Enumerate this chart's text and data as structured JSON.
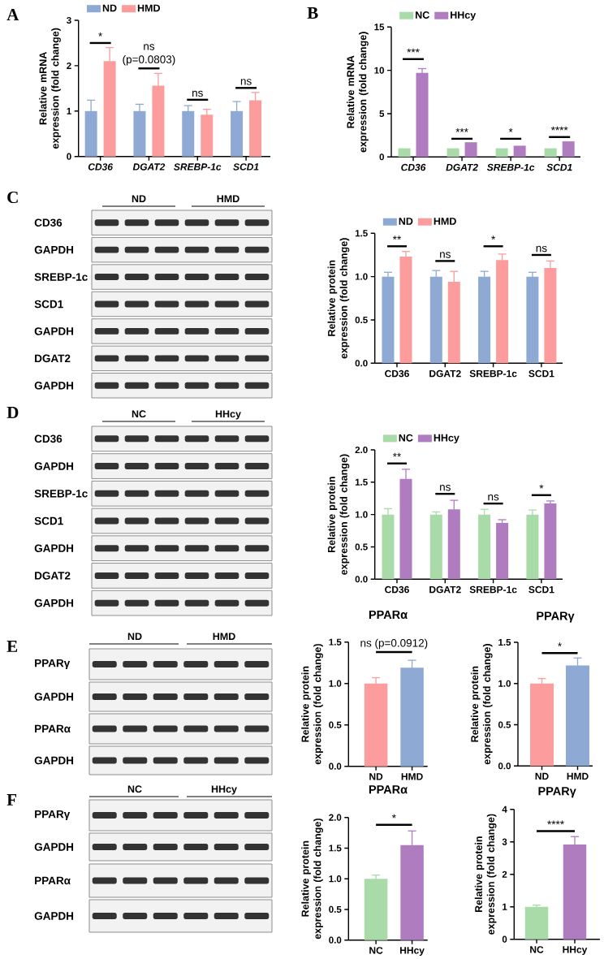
{
  "chart_data": [
    {
      "type": "bar",
      "ylabel": "Relative mRNA expression (fold change)",
      "categories": [
        "CD36",
        "DGAT2",
        "SREBP-1c",
        "SCD1"
      ],
      "series": [
        {
          "name": "ND",
          "color": "#8ea9d3",
          "values": [
            1,
            1,
            1,
            1
          ],
          "errors": [
            0.24,
            0.15,
            0.12,
            0.21
          ]
        },
        {
          "name": "HMD",
          "color": "#fd9c9c",
          "values": [
            2.1,
            1.56,
            0.92,
            1.24
          ],
          "errors": [
            0.3,
            0.27,
            0.12,
            0.17
          ]
        }
      ],
      "ylim": [
        0,
        3
      ],
      "yticks": [
        0,
        1,
        2,
        3
      ],
      "legend": "top",
      "annotations": [
        "A",
        "*",
        "ns (p=0.0803)",
        "ns",
        "ns"
      ]
    },
    {
      "type": "bar",
      "ylabel": "Relative mRNA expression (fold change)",
      "categories": [
        "CD36",
        "DGAT2",
        "SREBP-1c",
        "SCD1"
      ],
      "series": [
        {
          "name": "NC",
          "color": "#a8dba8",
          "values": [
            1,
            1,
            1,
            1
          ]
        },
        {
          "name": "HHcy",
          "color": "#b07cc0",
          "values": [
            9.7,
            1.7,
            1.3,
            1.8
          ],
          "errors": [
            0.5,
            null,
            null,
            null
          ]
        }
      ],
      "ylim": [
        0,
        15
      ],
      "yticks": [
        0,
        5,
        10,
        15
      ],
      "legend": "top",
      "annotations": [
        "B",
        "***",
        "***",
        "*",
        "****"
      ]
    },
    {
      "type": "other",
      "annotations": [
        "C",
        "ND",
        "HMD",
        "CD36",
        "GAPDH",
        "SREBP-1c",
        "SCD1",
        "GAPDH",
        "DGAT2",
        "GAPDH"
      ]
    },
    {
      "type": "bar",
      "ylabel": "Relative protein expression (fold change)",
      "categories": [
        "CD36",
        "DGAT2",
        "SREBP-1c",
        "SCD1"
      ],
      "series": [
        {
          "name": "ND",
          "color": "#8ea9d3",
          "values": [
            1,
            1,
            1,
            1
          ],
          "errors": [
            0.05,
            0.07,
            0.06,
            0.05
          ]
        },
        {
          "name": "HMD",
          "color": "#fd9c9c",
          "values": [
            1.23,
            0.94,
            1.19,
            1.1
          ],
          "errors": [
            0.06,
            0.12,
            0.07,
            0.08
          ]
        }
      ],
      "ylim": [
        0,
        1.5
      ],
      "yticks": [
        {
          "value": 0,
          "label": "0.0"
        },
        0.5,
        {
          "value": 1,
          "label": "1.0"
        },
        1.5
      ],
      "legend": "top",
      "annotations": [
        "**",
        "ns",
        "*",
        "ns"
      ]
    },
    {
      "type": "other",
      "annotations": [
        "D",
        "NC",
        "HHcy",
        "CD36",
        "GAPDH",
        "SREBP-1c",
        "SCD1",
        "GAPDH",
        "DGAT2",
        "GAPDH"
      ]
    },
    {
      "type": "bar",
      "ylabel": "Relative protein expression (fold change)",
      "categories": [
        "CD36",
        "DGAT2",
        "SREBP-1c",
        "SCD1"
      ],
      "series": [
        {
          "name": "NC",
          "color": "#a8dba8",
          "values": [
            1,
            1,
            1,
            1
          ],
          "errors": [
            0.09,
            0.04,
            0.08,
            0.07
          ]
        },
        {
          "name": "HHcy",
          "color": "#b07cc0",
          "values": [
            1.55,
            1.08,
            0.87,
            1.17
          ],
          "errors": [
            0.15,
            0.14,
            0.05,
            0.04
          ]
        }
      ],
      "ylim": [
        0,
        2
      ],
      "yticks": [
        {
          "value": 0,
          "label": "0.0"
        },
        0.5,
        {
          "value": 1,
          "label": "1.0"
        },
        1.5,
        {
          "value": 2,
          "label": "2.0"
        }
      ],
      "legend": "top",
      "annotations": [
        "**",
        "ns",
        "ns",
        "*"
      ]
    },
    {
      "type": "other",
      "annotations": [
        "E",
        "ND",
        "HMD",
        "PPARγ",
        "GAPDH",
        "PPARα",
        "GAPDH"
      ]
    },
    {
      "type": "bar",
      "title": "PPARα",
      "ylabel": "Relative protein expression (fold change)",
      "categories": [
        "ND",
        "HMD"
      ],
      "values": [
        1,
        1.19
      ],
      "errors": [
        0.07,
        0.09
      ],
      "colors": [
        "#fd9c9c",
        "#8ea9d3"
      ],
      "ylim": [
        0,
        1.5
      ],
      "yticks": [
        {
          "value": 0,
          "label": "0.0"
        },
        0.5,
        {
          "value": 1,
          "label": "1.0"
        },
        1.5
      ],
      "annotations": [
        "ns (p=0.0912)"
      ]
    },
    {
      "type": "bar",
      "title": "PPARγ",
      "ylabel": "Relative protein expression (fold change)",
      "categories": [
        "ND",
        "HMD"
      ],
      "values": [
        1,
        1.22
      ],
      "errors": [
        0.06,
        0.09
      ],
      "colors": [
        "#fd9c9c",
        "#8ea9d3"
      ],
      "ylim": [
        0,
        1.5
      ],
      "yticks": [
        {
          "value": 0,
          "label": "0.0"
        },
        0.5,
        {
          "value": 1,
          "label": "1.0"
        },
        1.5
      ],
      "annotations": [
        "*"
      ]
    },
    {
      "type": "other",
      "annotations": [
        "F",
        "NC",
        "HHcy",
        "PPARγ",
        "GAPDH",
        "PPARα",
        "GAPDH"
      ]
    },
    {
      "type": "bar",
      "title": "PPARα",
      "ylabel": "Relative protein expression (fold change)",
      "categories": [
        "NC",
        "HHcy"
      ],
      "values": [
        1,
        1.55
      ],
      "errors": [
        0.06,
        0.23
      ],
      "colors": [
        "#a8dba8",
        "#b07cc0"
      ],
      "ylim": [
        0,
        2
      ],
      "yticks": [
        {
          "value": 0,
          "label": "0.0"
        },
        0.5,
        {
          "value": 1,
          "label": "1.0"
        },
        1.5,
        {
          "value": 2,
          "label": "2.0"
        }
      ],
      "annotations": [
        "*"
      ]
    },
    {
      "type": "bar",
      "title": "PPARγ",
      "ylabel": "Relative protein expression (fold change)",
      "categories": [
        "NC",
        "HHcy"
      ],
      "values": [
        1,
        2.92
      ],
      "errors": [
        0.05,
        0.24
      ],
      "colors": [
        "#a8dba8",
        "#b07cc0"
      ],
      "ylim": [
        0,
        4
      ],
      "yticks": [
        0,
        1,
        2,
        3,
        4
      ],
      "annotations": [
        "****"
      ]
    }
  ]
}
